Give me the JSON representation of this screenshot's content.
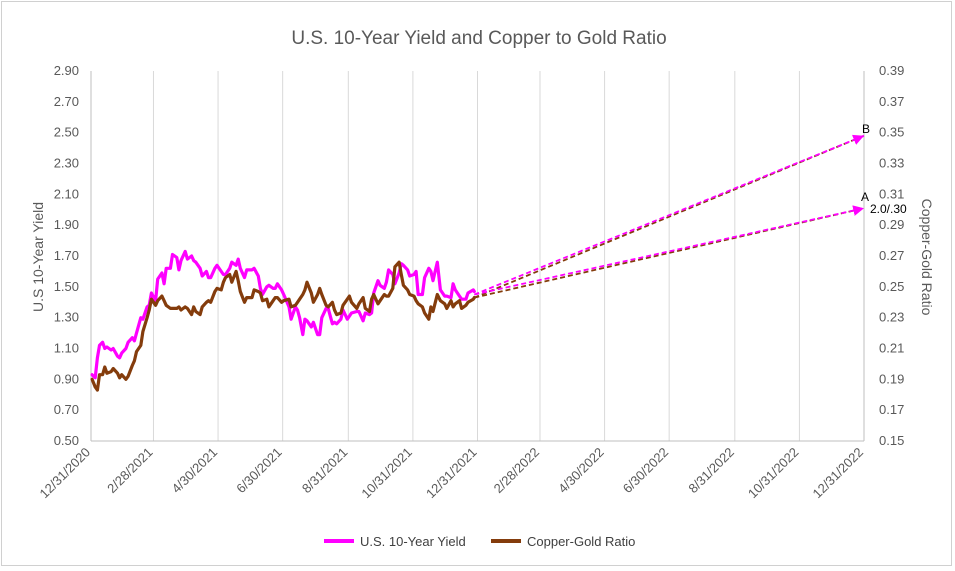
{
  "chart_data": {
    "type": "line",
    "title": "U.S. 10-Year Yield and Copper to Gold Ratio",
    "ylabel": "U.S 10-Year Yield",
    "y2label": "Copper-Gold Ratio",
    "x_range": [
      "2020-12-31",
      "2022-12-31"
    ],
    "x_ticks": [
      "12/31/2020",
      "2/28/2021",
      "4/30/2021",
      "6/30/2021",
      "8/31/2021",
      "10/31/2021",
      "12/31/2021",
      "2/28/2022",
      "4/30/2022",
      "6/30/2022",
      "8/31/2022",
      "10/31/2022",
      "12/31/2022"
    ],
    "y_ticks": [
      "0.50",
      "0.70",
      "0.90",
      "1.10",
      "1.30",
      "1.50",
      "1.70",
      "1.90",
      "2.10",
      "2.30",
      "2.50",
      "2.70",
      "2.90"
    ],
    "y2_ticks": [
      "0.15",
      "0.17",
      "0.19",
      "0.21",
      "0.23",
      "0.25",
      "0.27",
      "0.29",
      "0.31",
      "0.33",
      "0.35",
      "0.37",
      "0.39"
    ],
    "ylim": [
      0.5,
      2.9
    ],
    "y2lim": [
      0.15,
      0.39
    ],
    "grid": "vertical",
    "legend_position": "bottom",
    "colors": {
      "yield": "#ff00ff",
      "ratio": "#843c0c"
    },
    "series": [
      {
        "name": "U.S. 10-Year Yield",
        "axis": "left",
        "points": [
          [
            "2021-01-01",
            0.93
          ],
          [
            "2021-01-04",
            0.91
          ],
          [
            "2021-01-06",
            1.04
          ],
          [
            "2021-01-08",
            1.12
          ],
          [
            "2021-01-11",
            1.14
          ],
          [
            "2021-01-13",
            1.1
          ],
          [
            "2021-01-15",
            1.11
          ],
          [
            "2021-01-19",
            1.09
          ],
          [
            "2021-01-21",
            1.1
          ],
          [
            "2021-01-25",
            1.05
          ],
          [
            "2021-01-27",
            1.04
          ],
          [
            "2021-01-29",
            1.07
          ],
          [
            "2021-02-02",
            1.1
          ],
          [
            "2021-02-04",
            1.14
          ],
          [
            "2021-02-08",
            1.17
          ],
          [
            "2021-02-10",
            1.15
          ],
          [
            "2021-02-12",
            1.2
          ],
          [
            "2021-02-16",
            1.3
          ],
          [
            "2021-02-18",
            1.29
          ],
          [
            "2021-02-22",
            1.37
          ],
          [
            "2021-02-24",
            1.38
          ],
          [
            "2021-02-26",
            1.46
          ],
          [
            "2021-03-02",
            1.41
          ],
          [
            "2021-03-04",
            1.55
          ],
          [
            "2021-03-08",
            1.59
          ],
          [
            "2021-03-10",
            1.52
          ],
          [
            "2021-03-12",
            1.62
          ],
          [
            "2021-03-16",
            1.62
          ],
          [
            "2021-03-18",
            1.71
          ],
          [
            "2021-03-22",
            1.69
          ],
          [
            "2021-03-24",
            1.61
          ],
          [
            "2021-03-26",
            1.67
          ],
          [
            "2021-03-30",
            1.73
          ],
          [
            "2021-04-01",
            1.68
          ],
          [
            "2021-04-05",
            1.7
          ],
          [
            "2021-04-07",
            1.67
          ],
          [
            "2021-04-09",
            1.66
          ],
          [
            "2021-04-13",
            1.62
          ],
          [
            "2021-04-15",
            1.57
          ],
          [
            "2021-04-19",
            1.6
          ],
          [
            "2021-04-21",
            1.56
          ],
          [
            "2021-04-23",
            1.56
          ],
          [
            "2021-04-27",
            1.62
          ],
          [
            "2021-04-29",
            1.64
          ],
          [
            "2021-05-03",
            1.6
          ],
          [
            "2021-05-05",
            1.58
          ],
          [
            "2021-05-07",
            1.58
          ],
          [
            "2021-05-11",
            1.62
          ],
          [
            "2021-05-13",
            1.66
          ],
          [
            "2021-05-17",
            1.64
          ],
          [
            "2021-05-19",
            1.68
          ],
          [
            "2021-05-21",
            1.62
          ],
          [
            "2021-05-25",
            1.56
          ],
          [
            "2021-05-27",
            1.61
          ],
          [
            "2021-06-01",
            1.61
          ],
          [
            "2021-06-03",
            1.62
          ],
          [
            "2021-06-07",
            1.57
          ],
          [
            "2021-06-09",
            1.49
          ],
          [
            "2021-06-11",
            1.45
          ],
          [
            "2021-06-15",
            1.5
          ],
          [
            "2021-06-17",
            1.51
          ],
          [
            "2021-06-21",
            1.49
          ],
          [
            "2021-06-23",
            1.49
          ],
          [
            "2021-06-25",
            1.52
          ],
          [
            "2021-06-29",
            1.48
          ],
          [
            "2021-07-01",
            1.45
          ],
          [
            "2021-07-06",
            1.37
          ],
          [
            "2021-07-08",
            1.29
          ],
          [
            "2021-07-12",
            1.37
          ],
          [
            "2021-07-14",
            1.35
          ],
          [
            "2021-07-16",
            1.3
          ],
          [
            "2021-07-19",
            1.19
          ],
          [
            "2021-07-21",
            1.29
          ],
          [
            "2021-07-23",
            1.28
          ],
          [
            "2021-07-27",
            1.24
          ],
          [
            "2021-07-29",
            1.27
          ],
          [
            "2021-08-02",
            1.19
          ],
          [
            "2021-08-04",
            1.19
          ],
          [
            "2021-08-06",
            1.3
          ],
          [
            "2021-08-10",
            1.36
          ],
          [
            "2021-08-12",
            1.36
          ],
          [
            "2021-08-16",
            1.26
          ],
          [
            "2021-08-18",
            1.27
          ],
          [
            "2021-08-20",
            1.26
          ],
          [
            "2021-08-24",
            1.29
          ],
          [
            "2021-08-26",
            1.35
          ],
          [
            "2021-08-30",
            1.29
          ],
          [
            "2021-09-01",
            1.31
          ],
          [
            "2021-09-03",
            1.33
          ],
          [
            "2021-09-08",
            1.34
          ],
          [
            "2021-09-10",
            1.34
          ],
          [
            "2021-09-14",
            1.28
          ],
          [
            "2021-09-16",
            1.33
          ],
          [
            "2021-09-20",
            1.32
          ],
          [
            "2021-09-22",
            1.33
          ],
          [
            "2021-09-24",
            1.46
          ],
          [
            "2021-09-28",
            1.54
          ],
          [
            "2021-09-30",
            1.51
          ],
          [
            "2021-10-04",
            1.49
          ],
          [
            "2021-10-06",
            1.53
          ],
          [
            "2021-10-08",
            1.61
          ],
          [
            "2021-10-12",
            1.58
          ],
          [
            "2021-10-14",
            1.52
          ],
          [
            "2021-10-18",
            1.59
          ],
          [
            "2021-10-20",
            1.65
          ],
          [
            "2021-10-22",
            1.64
          ],
          [
            "2021-10-26",
            1.61
          ],
          [
            "2021-10-28",
            1.57
          ],
          [
            "2021-11-01",
            1.58
          ],
          [
            "2021-11-03",
            1.6
          ],
          [
            "2021-11-05",
            1.45
          ],
          [
            "2021-11-09",
            1.45
          ],
          [
            "2021-11-11",
            1.56
          ],
          [
            "2021-11-15",
            1.62
          ],
          [
            "2021-11-17",
            1.6
          ],
          [
            "2021-11-19",
            1.54
          ],
          [
            "2021-11-23",
            1.66
          ],
          [
            "2021-11-26",
            1.48
          ],
          [
            "2021-11-30",
            1.44
          ],
          [
            "2021-12-02",
            1.44
          ],
          [
            "2021-12-06",
            1.43
          ],
          [
            "2021-12-08",
            1.52
          ],
          [
            "2021-12-10",
            1.48
          ],
          [
            "2021-12-14",
            1.44
          ],
          [
            "2021-12-16",
            1.42
          ],
          [
            "2021-12-20",
            1.42
          ],
          [
            "2021-12-22",
            1.46
          ],
          [
            "2021-12-27",
            1.48
          ],
          [
            "2021-12-28",
            1.47
          ]
        ]
      },
      {
        "name": "Copper-Gold Ratio",
        "axis": "right",
        "points": [
          [
            "2021-01-01",
            0.19
          ],
          [
            "2021-01-04",
            0.185
          ],
          [
            "2021-01-06",
            0.183
          ],
          [
            "2021-01-08",
            0.193
          ],
          [
            "2021-01-11",
            0.193
          ],
          [
            "2021-01-13",
            0.198
          ],
          [
            "2021-01-15",
            0.194
          ],
          [
            "2021-01-19",
            0.195
          ],
          [
            "2021-01-21",
            0.197
          ],
          [
            "2021-01-25",
            0.194
          ],
          [
            "2021-01-27",
            0.191
          ],
          [
            "2021-01-29",
            0.193
          ],
          [
            "2021-02-02",
            0.19
          ],
          [
            "2021-02-04",
            0.192
          ],
          [
            "2021-02-08",
            0.199
          ],
          [
            "2021-02-10",
            0.202
          ],
          [
            "2021-02-12",
            0.208
          ],
          [
            "2021-02-16",
            0.212
          ],
          [
            "2021-02-18",
            0.221
          ],
          [
            "2021-02-22",
            0.23
          ],
          [
            "2021-02-24",
            0.235
          ],
          [
            "2021-02-26",
            0.242
          ],
          [
            "2021-03-02",
            0.238
          ],
          [
            "2021-03-04",
            0.241
          ],
          [
            "2021-03-08",
            0.244
          ],
          [
            "2021-03-10",
            0.241
          ],
          [
            "2021-03-12",
            0.238
          ],
          [
            "2021-03-16",
            0.236
          ],
          [
            "2021-03-18",
            0.236
          ],
          [
            "2021-03-22",
            0.236
          ],
          [
            "2021-03-24",
            0.237
          ],
          [
            "2021-03-26",
            0.235
          ],
          [
            "2021-03-30",
            0.237
          ],
          [
            "2021-04-01",
            0.236
          ],
          [
            "2021-04-05",
            0.232
          ],
          [
            "2021-04-07",
            0.237
          ],
          [
            "2021-04-09",
            0.234
          ],
          [
            "2021-04-13",
            0.232
          ],
          [
            "2021-04-15",
            0.237
          ],
          [
            "2021-04-19",
            0.24
          ],
          [
            "2021-04-21",
            0.241
          ],
          [
            "2021-04-23",
            0.24
          ],
          [
            "2021-04-27",
            0.247
          ],
          [
            "2021-04-29",
            0.249
          ],
          [
            "2021-05-03",
            0.248
          ],
          [
            "2021-05-05",
            0.253
          ],
          [
            "2021-05-07",
            0.256
          ],
          [
            "2021-05-11",
            0.258
          ],
          [
            "2021-05-13",
            0.253
          ],
          [
            "2021-05-17",
            0.26
          ],
          [
            "2021-05-19",
            0.254
          ],
          [
            "2021-05-21",
            0.247
          ],
          [
            "2021-05-25",
            0.24
          ],
          [
            "2021-05-27",
            0.243
          ],
          [
            "2021-06-01",
            0.243
          ],
          [
            "2021-06-03",
            0.248
          ],
          [
            "2021-06-07",
            0.247
          ],
          [
            "2021-06-09",
            0.246
          ],
          [
            "2021-06-11",
            0.241
          ],
          [
            "2021-06-15",
            0.242
          ],
          [
            "2021-06-17",
            0.237
          ],
          [
            "2021-06-21",
            0.241
          ],
          [
            "2021-06-23",
            0.243
          ],
          [
            "2021-06-25",
            0.243
          ],
          [
            "2021-06-29",
            0.24
          ],
          [
            "2021-07-01",
            0.241
          ],
          [
            "2021-07-06",
            0.242
          ],
          [
            "2021-07-08",
            0.237
          ],
          [
            "2021-07-12",
            0.238
          ],
          [
            "2021-07-14",
            0.24
          ],
          [
            "2021-07-16",
            0.242
          ],
          [
            "2021-07-19",
            0.245
          ],
          [
            "2021-07-21",
            0.248
          ],
          [
            "2021-07-23",
            0.253
          ],
          [
            "2021-07-27",
            0.246
          ],
          [
            "2021-07-29",
            0.24
          ],
          [
            "2021-08-02",
            0.245
          ],
          [
            "2021-08-04",
            0.249
          ],
          [
            "2021-08-06",
            0.245
          ],
          [
            "2021-08-10",
            0.238
          ],
          [
            "2021-08-12",
            0.237
          ],
          [
            "2021-08-16",
            0.24
          ],
          [
            "2021-08-18",
            0.235
          ],
          [
            "2021-08-20",
            0.232
          ],
          [
            "2021-08-24",
            0.233
          ],
          [
            "2021-08-26",
            0.238
          ],
          [
            "2021-08-30",
            0.242
          ],
          [
            "2021-09-01",
            0.244
          ],
          [
            "2021-09-03",
            0.24
          ],
          [
            "2021-09-08",
            0.236
          ],
          [
            "2021-09-10",
            0.239
          ],
          [
            "2021-09-14",
            0.243
          ],
          [
            "2021-09-16",
            0.236
          ],
          [
            "2021-09-20",
            0.234
          ],
          [
            "2021-09-22",
            0.242
          ],
          [
            "2021-09-24",
            0.245
          ],
          [
            "2021-09-28",
            0.239
          ],
          [
            "2021-09-30",
            0.241
          ],
          [
            "2021-10-04",
            0.245
          ],
          [
            "2021-10-06",
            0.244
          ],
          [
            "2021-10-08",
            0.244
          ],
          [
            "2021-10-12",
            0.249
          ],
          [
            "2021-10-14",
            0.263
          ],
          [
            "2021-10-18",
            0.266
          ],
          [
            "2021-10-20",
            0.258
          ],
          [
            "2021-10-22",
            0.251
          ],
          [
            "2021-10-26",
            0.248
          ],
          [
            "2021-10-28",
            0.245
          ],
          [
            "2021-11-01",
            0.244
          ],
          [
            "2021-11-03",
            0.241
          ],
          [
            "2021-11-05",
            0.239
          ],
          [
            "2021-11-09",
            0.237
          ],
          [
            "2021-11-11",
            0.233
          ],
          [
            "2021-11-15",
            0.229
          ],
          [
            "2021-11-17",
            0.237
          ],
          [
            "2021-11-19",
            0.234
          ],
          [
            "2021-11-23",
            0.245
          ],
          [
            "2021-11-26",
            0.241
          ],
          [
            "2021-11-30",
            0.239
          ],
          [
            "2021-12-02",
            0.236
          ],
          [
            "2021-12-06",
            0.241
          ],
          [
            "2021-12-08",
            0.237
          ],
          [
            "2021-12-10",
            0.239
          ],
          [
            "2021-12-14",
            0.241
          ],
          [
            "2021-12-16",
            0.236
          ],
          [
            "2021-12-20",
            0.238
          ],
          [
            "2021-12-22",
            0.24
          ],
          [
            "2021-12-27",
            0.242
          ],
          [
            "2021-12-28",
            0.243
          ]
        ]
      }
    ],
    "projections": [
      {
        "label": "B",
        "from": [
          "2021-12-28",
          1.45
        ],
        "to": [
          "2022-12-31",
          2.48
        ],
        "to_ratio": 0.348
      },
      {
        "label": "A",
        "from": [
          "2021-12-28",
          1.45
        ],
        "to": [
          "2022-12-31",
          2.01
        ],
        "to_ratio": 0.301
      }
    ],
    "annotations": [
      {
        "text": "B"
      },
      {
        "text": "A"
      },
      {
        "text": "2.0/.30"
      }
    ]
  }
}
